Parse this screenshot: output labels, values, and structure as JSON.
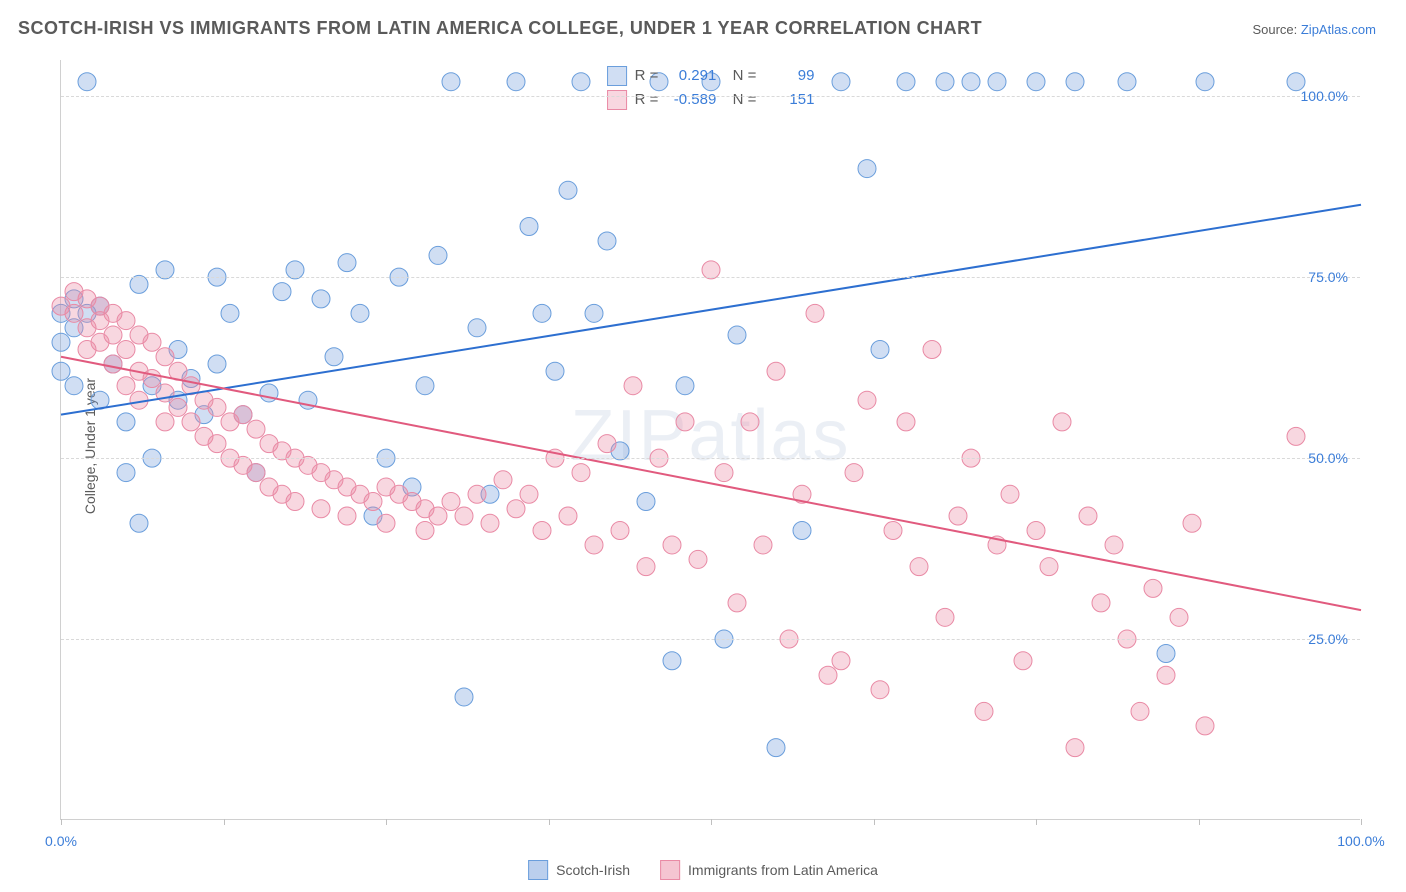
{
  "title": "SCOTCH-IRISH VS IMMIGRANTS FROM LATIN AMERICA COLLEGE, UNDER 1 YEAR CORRELATION CHART",
  "source_prefix": "Source: ",
  "source_link": "ZipAtlas.com",
  "ylabel": "College, Under 1 year",
  "watermark": "ZIPatlas",
  "chart": {
    "type": "scatter-with-regression",
    "xlim": [
      0,
      100
    ],
    "ylim": [
      0,
      105
    ],
    "yticks": [
      25,
      50,
      75,
      100
    ],
    "ytick_labels": [
      "25.0%",
      "50.0%",
      "75.0%",
      "100.0%"
    ],
    "xticks": [
      0,
      12.5,
      25,
      37.5,
      50,
      62.5,
      75,
      87.5,
      100
    ],
    "xtick_labels_shown": {
      "0": "0.0%",
      "100": "100.0%"
    },
    "background_color": "#ffffff",
    "grid_color": "#d9d9d9",
    "series": [
      {
        "name": "Scotch-Irish",
        "marker_color_fill": "rgba(120,160,220,0.35)",
        "marker_color_stroke": "#6a9edc",
        "marker_radius": 9,
        "line_color": "#2d6fd0",
        "line_width": 2,
        "R": "0.291",
        "N": "99",
        "regression": {
          "x1": 0,
          "y1": 56,
          "x2": 100,
          "y2": 85
        },
        "points": [
          [
            0,
            70
          ],
          [
            0,
            66
          ],
          [
            0,
            62
          ],
          [
            1,
            72
          ],
          [
            1,
            68
          ],
          [
            1,
            60
          ],
          [
            2,
            70
          ],
          [
            2,
            102
          ],
          [
            3,
            71
          ],
          [
            3,
            58
          ],
          [
            4,
            63
          ],
          [
            5,
            55
          ],
          [
            5,
            48
          ],
          [
            6,
            41
          ],
          [
            6,
            74
          ],
          [
            7,
            60
          ],
          [
            7,
            50
          ],
          [
            8,
            76
          ],
          [
            9,
            58
          ],
          [
            9,
            65
          ],
          [
            10,
            61
          ],
          [
            11,
            56
          ],
          [
            12,
            63
          ],
          [
            12,
            75
          ],
          [
            13,
            70
          ],
          [
            14,
            56
          ],
          [
            15,
            48
          ],
          [
            16,
            59
          ],
          [
            17,
            73
          ],
          [
            18,
            76
          ],
          [
            19,
            58
          ],
          [
            20,
            72
          ],
          [
            21,
            64
          ],
          [
            22,
            77
          ],
          [
            23,
            70
          ],
          [
            24,
            42
          ],
          [
            25,
            50
          ],
          [
            26,
            75
          ],
          [
            27,
            46
          ],
          [
            28,
            60
          ],
          [
            29,
            78
          ],
          [
            30,
            102
          ],
          [
            31,
            17
          ],
          [
            32,
            68
          ],
          [
            33,
            45
          ],
          [
            35,
            102
          ],
          [
            36,
            82
          ],
          [
            37,
            70
          ],
          [
            38,
            62
          ],
          [
            39,
            87
          ],
          [
            40,
            102
          ],
          [
            41,
            70
          ],
          [
            42,
            80
          ],
          [
            43,
            51
          ],
          [
            45,
            44
          ],
          [
            46,
            102
          ],
          [
            47,
            22
          ],
          [
            48,
            60
          ],
          [
            50,
            102
          ],
          [
            51,
            25
          ],
          [
            52,
            67
          ],
          [
            55,
            10
          ],
          [
            57,
            40
          ],
          [
            60,
            102
          ],
          [
            62,
            90
          ],
          [
            63,
            65
          ],
          [
            65,
            102
          ],
          [
            68,
            102
          ],
          [
            70,
            102
          ],
          [
            72,
            102
          ],
          [
            75,
            102
          ],
          [
            78,
            102
          ],
          [
            82,
            102
          ],
          [
            85,
            23
          ],
          [
            88,
            102
          ],
          [
            95,
            102
          ]
        ]
      },
      {
        "name": "Immigrants from Latin America",
        "marker_color_fill": "rgba(235,140,165,0.35)",
        "marker_color_stroke": "#e98aa5",
        "marker_radius": 9,
        "line_color": "#e15a7e",
        "line_width": 2,
        "R": "-0.589",
        "N": "151",
        "regression": {
          "x1": 0,
          "y1": 64,
          "x2": 100,
          "y2": 29
        },
        "points": [
          [
            0,
            71
          ],
          [
            1,
            73
          ],
          [
            1,
            70
          ],
          [
            2,
            72
          ],
          [
            2,
            68
          ],
          [
            2,
            65
          ],
          [
            3,
            71
          ],
          [
            3,
            69
          ],
          [
            3,
            66
          ],
          [
            4,
            70
          ],
          [
            4,
            67
          ],
          [
            4,
            63
          ],
          [
            5,
            69
          ],
          [
            5,
            65
          ],
          [
            5,
            60
          ],
          [
            6,
            67
          ],
          [
            6,
            62
          ],
          [
            6,
            58
          ],
          [
            7,
            66
          ],
          [
            7,
            61
          ],
          [
            8,
            64
          ],
          [
            8,
            59
          ],
          [
            8,
            55
          ],
          [
            9,
            62
          ],
          [
            9,
            57
          ],
          [
            10,
            60
          ],
          [
            10,
            55
          ],
          [
            11,
            58
          ],
          [
            11,
            53
          ],
          [
            12,
            57
          ],
          [
            12,
            52
          ],
          [
            13,
            55
          ],
          [
            13,
            50
          ],
          [
            14,
            56
          ],
          [
            14,
            49
          ],
          [
            15,
            54
          ],
          [
            15,
            48
          ],
          [
            16,
            52
          ],
          [
            16,
            46
          ],
          [
            17,
            51
          ],
          [
            17,
            45
          ],
          [
            18,
            50
          ],
          [
            18,
            44
          ],
          [
            19,
            49
          ],
          [
            20,
            48
          ],
          [
            20,
            43
          ],
          [
            21,
            47
          ],
          [
            22,
            46
          ],
          [
            22,
            42
          ],
          [
            23,
            45
          ],
          [
            24,
            44
          ],
          [
            25,
            46
          ],
          [
            25,
            41
          ],
          [
            26,
            45
          ],
          [
            27,
            44
          ],
          [
            28,
            43
          ],
          [
            28,
            40
          ],
          [
            29,
            42
          ],
          [
            30,
            44
          ],
          [
            31,
            42
          ],
          [
            32,
            45
          ],
          [
            33,
            41
          ],
          [
            34,
            47
          ],
          [
            35,
            43
          ],
          [
            36,
            45
          ],
          [
            37,
            40
          ],
          [
            38,
            50
          ],
          [
            39,
            42
          ],
          [
            40,
            48
          ],
          [
            41,
            38
          ],
          [
            42,
            52
          ],
          [
            43,
            40
          ],
          [
            44,
            60
          ],
          [
            45,
            35
          ],
          [
            46,
            50
          ],
          [
            47,
            38
          ],
          [
            48,
            55
          ],
          [
            49,
            36
          ],
          [
            50,
            76
          ],
          [
            51,
            48
          ],
          [
            52,
            30
          ],
          [
            53,
            55
          ],
          [
            54,
            38
          ],
          [
            55,
            62
          ],
          [
            56,
            25
          ],
          [
            57,
            45
          ],
          [
            58,
            70
          ],
          [
            59,
            20
          ],
          [
            60,
            22
          ],
          [
            61,
            48
          ],
          [
            62,
            58
          ],
          [
            63,
            18
          ],
          [
            64,
            40
          ],
          [
            65,
            55
          ],
          [
            66,
            35
          ],
          [
            67,
            65
          ],
          [
            68,
            28
          ],
          [
            69,
            42
          ],
          [
            70,
            50
          ],
          [
            71,
            15
          ],
          [
            72,
            38
          ],
          [
            73,
            45
          ],
          [
            74,
            22
          ],
          [
            75,
            40
          ],
          [
            76,
            35
          ],
          [
            77,
            55
          ],
          [
            78,
            10
          ],
          [
            79,
            42
          ],
          [
            80,
            30
          ],
          [
            81,
            38
          ],
          [
            82,
            25
          ],
          [
            83,
            15
          ],
          [
            84,
            32
          ],
          [
            85,
            20
          ],
          [
            86,
            28
          ],
          [
            87,
            41
          ],
          [
            88,
            13
          ],
          [
            95,
            53
          ]
        ]
      }
    ],
    "legend_bottom": [
      {
        "label": "Scotch-Irish",
        "fill": "rgba(120,160,220,0.5)",
        "stroke": "#6a9edc"
      },
      {
        "label": "Immigrants from Latin America",
        "fill": "rgba(235,140,165,0.5)",
        "stroke": "#e98aa5"
      }
    ]
  }
}
